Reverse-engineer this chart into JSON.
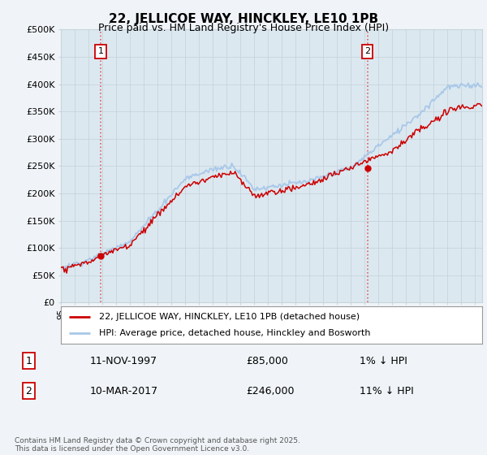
{
  "title": "22, JELLICOE WAY, HINCKLEY, LE10 1PB",
  "subtitle": "Price paid vs. HM Land Registry's House Price Index (HPI)",
  "ylabel_ticks": [
    "£0",
    "£50K",
    "£100K",
    "£150K",
    "£200K",
    "£250K",
    "£300K",
    "£350K",
    "£400K",
    "£450K",
    "£500K"
  ],
  "ylim": [
    0,
    500000
  ],
  "xlim_start": 1995.0,
  "xlim_end": 2025.5,
  "sale1_date": 1997.87,
  "sale1_price": 85000,
  "sale1_label": "1",
  "sale2_date": 2017.19,
  "sale2_price": 246000,
  "sale2_label": "2",
  "legend_line1": "22, JELLICOE WAY, HINCKLEY, LE10 1PB (detached house)",
  "legend_line2": "HPI: Average price, detached house, Hinckley and Bosworth",
  "table_row1": [
    "1",
    "11-NOV-1997",
    "£85,000",
    "1% ↓ HPI"
  ],
  "table_row2": [
    "2",
    "10-MAR-2017",
    "£246,000",
    "11% ↓ HPI"
  ],
  "footer": "Contains HM Land Registry data © Crown copyright and database right 2025.\nThis data is licensed under the Open Government Licence v3.0.",
  "hpi_color": "#a8c8e8",
  "price_color": "#cc0000",
  "sale_marker_color": "#cc0000",
  "dashed_line_color": "#e06060",
  "background_color": "#f0f4f8",
  "plot_bg_color": "#dce8f0",
  "label_box_color": "#cc0000",
  "grid_color": "#c8d4dc",
  "legend_border_color": "#999999"
}
